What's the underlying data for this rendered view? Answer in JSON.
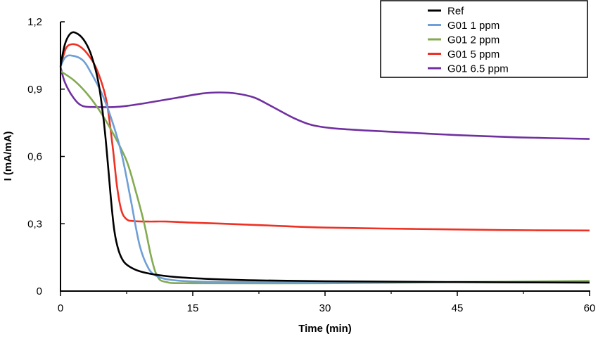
{
  "chart_data": {
    "type": "line",
    "title": "",
    "xlabel": "Time (min)",
    "ylabel": "I (mA/mA)",
    "xlim": [
      0,
      60
    ],
    "ylim": [
      0,
      1.2
    ],
    "xticks": [
      0,
      15,
      30,
      45,
      60
    ],
    "xtick_labels": [
      "0",
      "15",
      "30",
      "45",
      "60"
    ],
    "yticks": [
      0,
      0.3,
      0.6,
      0.9,
      1.2
    ],
    "ytick_labels": [
      "0",
      "0,3",
      "0,6",
      "0,9",
      "1,2"
    ],
    "grid": false,
    "legend_position": "top-right",
    "series": [
      {
        "name": "Ref",
        "color": "#000000",
        "x": [
          0,
          0.5,
          1.2,
          2,
          2.8,
          3.5,
          4.3,
          4.9,
          5.3,
          5.7,
          6.1,
          6.6,
          7.2,
          8,
          9,
          10.5,
          13,
          17,
          22,
          30,
          45,
          60
        ],
        "y": [
          1.0,
          1.1,
          1.15,
          1.145,
          1.11,
          1.05,
          0.93,
          0.76,
          0.6,
          0.42,
          0.27,
          0.18,
          0.13,
          0.105,
          0.088,
          0.075,
          0.063,
          0.054,
          0.048,
          0.044,
          0.04,
          0.038
        ]
      },
      {
        "name": "G01 1 ppm",
        "color": "#6e9fd6",
        "x": [
          0,
          0.5,
          1.2,
          2.5,
          3.5,
          4.8,
          6,
          7,
          8,
          9,
          10,
          11,
          12.5,
          15,
          20,
          30,
          45,
          60
        ],
        "y": [
          1.0,
          1.04,
          1.05,
          1.03,
          0.97,
          0.87,
          0.74,
          0.6,
          0.4,
          0.2,
          0.1,
          0.065,
          0.05,
          0.043,
          0.04,
          0.04,
          0.04,
          0.04
        ]
      },
      {
        "name": "G01 2 ppm",
        "color": "#84ab52",
        "x": [
          0,
          1.5,
          3,
          4.5,
          6,
          7.5,
          8.5,
          9.5,
          10.3,
          11,
          12,
          15,
          30,
          45,
          60
        ],
        "y": [
          0.98,
          0.94,
          0.88,
          0.8,
          0.7,
          0.58,
          0.45,
          0.3,
          0.15,
          0.065,
          0.04,
          0.035,
          0.035,
          0.04,
          0.045
        ]
      },
      {
        "name": "G01 5 ppm",
        "color": "#ee3124",
        "x": [
          0,
          0.6,
          1.3,
          2.2,
          3.2,
          4.2,
          5.2,
          5.9,
          6.4,
          6.9,
          7.5,
          8.3,
          10,
          12,
          15,
          20,
          25,
          30,
          40,
          50,
          60
        ],
        "y": [
          1.0,
          1.08,
          1.1,
          1.09,
          1.05,
          0.98,
          0.85,
          0.65,
          0.47,
          0.36,
          0.32,
          0.312,
          0.31,
          0.31,
          0.305,
          0.298,
          0.29,
          0.283,
          0.277,
          0.272,
          0.27
        ]
      },
      {
        "name": "G01 6.5 ppm",
        "color": "#7030a0",
        "x": [
          0,
          0.5,
          1.5,
          2.5,
          4,
          6,
          7.5,
          10,
          13,
          16,
          18,
          20,
          22,
          24,
          26.5,
          28.5,
          31,
          35,
          40,
          45,
          52,
          60
        ],
        "y": [
          1.0,
          0.93,
          0.86,
          0.825,
          0.82,
          0.82,
          0.825,
          0.84,
          0.86,
          0.88,
          0.885,
          0.88,
          0.862,
          0.822,
          0.77,
          0.74,
          0.725,
          0.715,
          0.705,
          0.695,
          0.685,
          0.678
        ]
      }
    ]
  }
}
